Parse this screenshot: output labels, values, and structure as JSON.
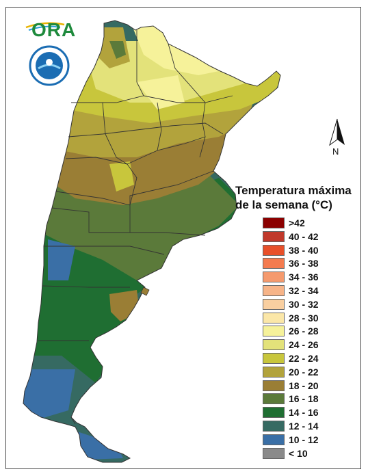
{
  "map": {
    "legend_title_line1": "Temperatura máxima",
    "legend_title_line2": "de la semana (°C)",
    "north_label": "N",
    "logo_text": "ORA",
    "legend": [
      {
        "label": ">42",
        "color": "#8b0000"
      },
      {
        "label": "40 - 42",
        "color": "#c0392b"
      },
      {
        "label": "38 - 40",
        "color": "#e8502a"
      },
      {
        "label": "36 - 38",
        "color": "#f47b4f"
      },
      {
        "label": "34 - 36",
        "color": "#f59a6e"
      },
      {
        "label": "32 - 34",
        "color": "#f7b488"
      },
      {
        "label": "30 - 32",
        "color": "#f9cfa0"
      },
      {
        "label": "28 - 30",
        "color": "#fbe7a8"
      },
      {
        "label": "26 - 28",
        "color": "#f6f29a"
      },
      {
        "label": "24 - 26",
        "color": "#e3e27a"
      },
      {
        "label": "22 - 24",
        "color": "#c8c63c"
      },
      {
        "label": "20 - 22",
        "color": "#b2a33c"
      },
      {
        "label": "18 - 20",
        "color": "#9a7e35"
      },
      {
        "label": "16 - 18",
        "color": "#5b7a3a"
      },
      {
        "label": "14 - 16",
        "color": "#1f6e32"
      },
      {
        "label": "12 - 14",
        "color": "#366a62"
      },
      {
        "label": "10 - 12",
        "color": "#3a6fa6"
      },
      {
        "label": "< 10",
        "color": "#8a8a8a"
      }
    ]
  }
}
